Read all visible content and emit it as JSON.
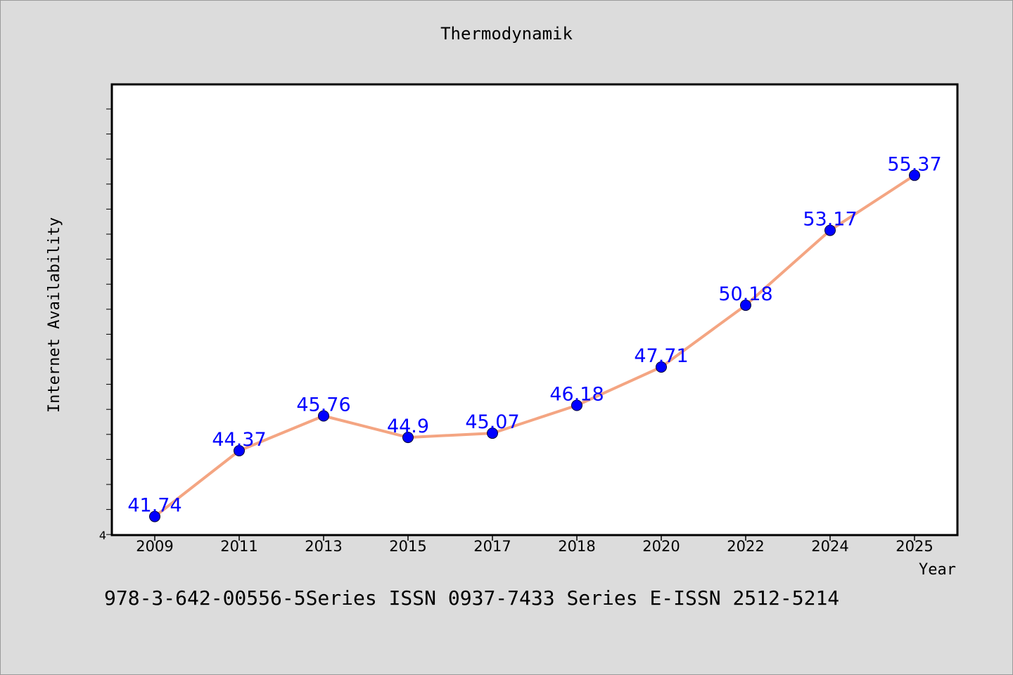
{
  "chart_data": {
    "type": "line",
    "title": "Thermodynamik",
    "xlabel": "Year",
    "ylabel": "Internet Availability",
    "categories": [
      "2009",
      "2011",
      "2013",
      "2015",
      "2017",
      "2018",
      "2020",
      "2022",
      "2024",
      "2025"
    ],
    "series": [
      {
        "values": [
          41.74,
          44.37,
          45.76,
          44.9,
          45.07,
          46.18,
          47.71,
          50.18,
          53.17,
          55.37
        ]
      }
    ],
    "data_labels": [
      "41.74",
      "44.37",
      "45.76",
      "44.9",
      "45.07",
      "46.18",
      "47.71",
      "50.18",
      "53.17",
      "55.37"
    ],
    "y_tick_labels": [
      "4"
    ],
    "ylim": [
      41.0,
      59.0
    ],
    "grid": false,
    "colors": {
      "line": "#f4a582",
      "marker": "#0000ff",
      "label": "#0000ff",
      "plot_background": "#ffffff",
      "page_background": "#dcdcdc"
    }
  },
  "footer": {
    "text": "978-3-642-00556-5Series ISSN 0937-7433 Series E-ISSN 2512-5214"
  }
}
